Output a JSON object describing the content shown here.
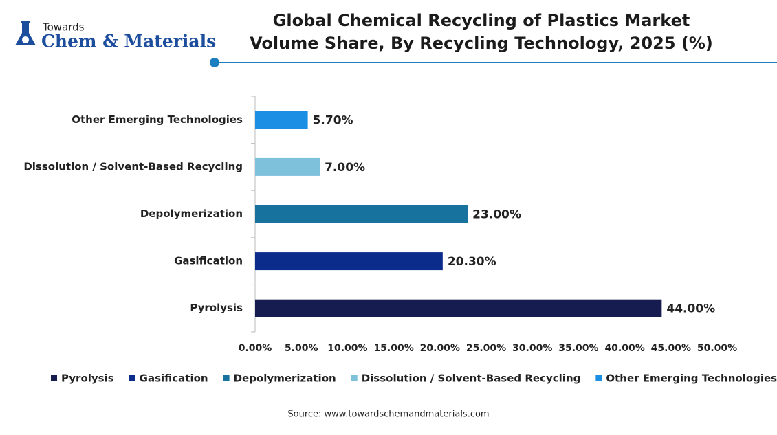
{
  "logo": {
    "top": "Towards",
    "name": "Chem & Materials"
  },
  "chart_data": {
    "type": "hbar",
    "title": "Global Chemical Recycling of Plastics Market Volume Share, By Recycling Technology, 2025 (%)",
    "categories": [
      "Pyrolysis",
      "Gasification",
      "Depolymerization",
      "Dissolution / Solvent-Based Recycling",
      "Other Emerging Technologies"
    ],
    "values": [
      44,
      20.3,
      23,
      7,
      5.7
    ],
    "value_labels": [
      "44.00%",
      "20.30%",
      "23.00%",
      "7.00%",
      "5.70%"
    ],
    "colors": [
      "#161c4f",
      "#0c2c8c",
      "#17729e",
      "#7ec1da",
      "#1a8fe3"
    ],
    "xlim": [
      0,
      50
    ],
    "xticks": [
      {
        "value": 0,
        "label": "0.00%"
      },
      {
        "value": 5,
        "label": "5.00%"
      },
      {
        "value": 10,
        "label": "10.00%"
      },
      {
        "value": 15,
        "label": "15.00%"
      },
      {
        "value": 20,
        "label": "20.00%"
      },
      {
        "value": 25,
        "label": "25.00%"
      },
      {
        "value": 30,
        "label": "30.00%"
      },
      {
        "value": 35,
        "label": "35.00%"
      },
      {
        "value": 40,
        "label": "40.00%"
      },
      {
        "value": 45,
        "label": "45.00%"
      },
      {
        "value": 50,
        "label": "50.00%"
      }
    ],
    "grid": false,
    "source": "Source: www.towardschemandmaterials.com"
  }
}
